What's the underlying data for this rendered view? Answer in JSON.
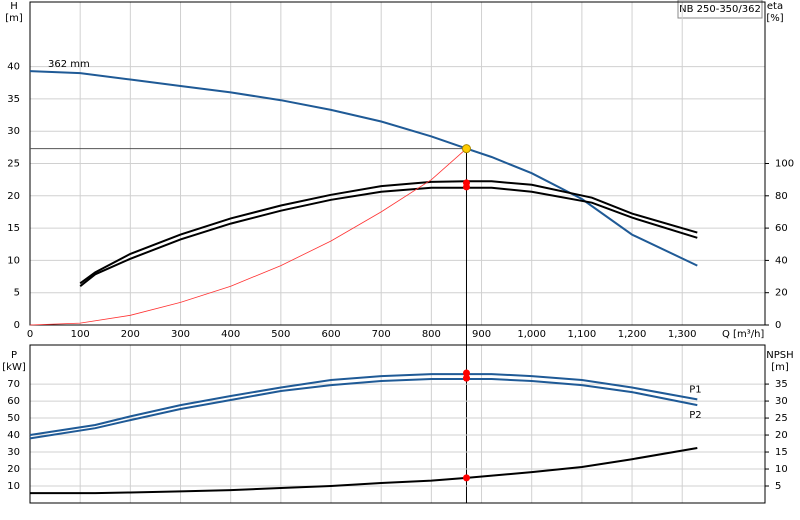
{
  "chart_data": [
    {
      "type": "line",
      "title": "NB 250-350/362",
      "x_label": "Q [m³/h]",
      "y_label": "H",
      "y_unit": "[m]",
      "y2_label": "eta",
      "y2_unit": "[%]",
      "xlim": [
        0,
        1465
      ],
      "xticks": [
        0,
        100,
        200,
        300,
        400,
        500,
        600,
        700,
        800,
        900,
        {
          "value": 1000,
          "label": "1,000"
        },
        {
          "value": 1100,
          "label": "1,100"
        },
        {
          "value": 1200,
          "label": "1,200"
        },
        {
          "value": 1300,
          "label": "1,300"
        }
      ],
      "ylim": [
        0,
        50
      ],
      "yticks": [
        0,
        5,
        10,
        15,
        20,
        25,
        30,
        35,
        40
      ],
      "y2lim": [
        0,
        200
      ],
      "y2ticks": [
        0,
        20,
        40,
        60,
        80,
        100
      ],
      "grid": true,
      "series": [
        {
          "name": "362 mm",
          "color": "#1f5a96",
          "x": [
            0,
            100,
            200,
            300,
            400,
            500,
            600,
            700,
            800,
            870,
            920,
            1000,
            1100,
            1200,
            1330
          ],
          "values": [
            39.3,
            39,
            38,
            37,
            36,
            34.8,
            33.3,
            31.5,
            29.2,
            27.3,
            26,
            23.5,
            19.5,
            14,
            9.2
          ]
        },
        {
          "color": "#000000",
          "axis": "y2",
          "x": [
            100,
            130,
            200,
            300,
            400,
            500,
            600,
            700,
            800,
            870,
            920,
            1000,
            1120,
            1200,
            1330
          ],
          "values": [
            25.8,
            32.6,
            44,
            56,
            66,
            74,
            80.6,
            86,
            88.6,
            89,
            89,
            86.8,
            78.8,
            69,
            57.2
          ]
        },
        {
          "color": "#000000",
          "axis": "y2",
          "x": [
            100,
            130,
            200,
            300,
            400,
            500,
            600,
            700,
            800,
            870,
            920,
            1000,
            1120,
            1200,
            1330
          ],
          "values": [
            24,
            31.4,
            41,
            53,
            62.8,
            70.8,
            77.5,
            82.5,
            85,
            85,
            85,
            82.5,
            75.7,
            66.5,
            54
          ]
        },
        {
          "color": "#ff3333",
          "x": [
            0,
            100,
            200,
            300,
            400,
            500,
            600,
            700,
            800,
            870
          ],
          "values": [
            0,
            0.3,
            1.5,
            3.5,
            6,
            9.2,
            13,
            17.5,
            22.5,
            27.3
          ]
        }
      ],
      "operating_point": {
        "x": 870,
        "y": 27.3,
        "y2": [
          88,
          85.5
        ]
      }
    },
    {
      "type": "line",
      "y_label": "P",
      "y_unit": "[kW]",
      "y2_label": "NPSH",
      "y2_unit": "[m]",
      "xlim": [
        0,
        1465
      ],
      "xticks": [
        0,
        100,
        200,
        300,
        400,
        500,
        600,
        700,
        800,
        900,
        1000,
        1100,
        1200,
        1300
      ],
      "ylim": [
        0,
        93
      ],
      "yticks": [
        10,
        20,
        30,
        40,
        50,
        60,
        70
      ],
      "y2lim": [
        0,
        46.5
      ],
      "y2ticks": [
        5,
        10,
        15,
        20,
        25,
        30,
        35
      ],
      "grid": true,
      "series": [
        {
          "name": "P1",
          "color": "#1f5a96",
          "x": [
            0,
            130,
            200,
            300,
            400,
            500,
            600,
            700,
            800,
            870,
            920,
            1000,
            1100,
            1200,
            1330
          ],
          "values": [
            40,
            45.9,
            51,
            57.6,
            63,
            68,
            72.4,
            74.7,
            75.9,
            75.9,
            75.9,
            74.7,
            72.4,
            68,
            61
          ]
        },
        {
          "name": "P2",
          "color": "#1f5a96",
          "x": [
            0,
            130,
            200,
            300,
            400,
            500,
            600,
            700,
            800,
            870,
            920,
            1000,
            1100,
            1200,
            1330
          ],
          "values": [
            38,
            44,
            48.8,
            55.3,
            60.6,
            65.9,
            69.4,
            71.8,
            73,
            73,
            73,
            71.8,
            69.4,
            65.3,
            57.6
          ]
        },
        {
          "color": "#000000",
          "axis": "y2",
          "x": [
            0,
            130,
            200,
            300,
            400,
            500,
            600,
            700,
            800,
            870,
            1000,
            1100,
            1200,
            1330
          ],
          "values": [
            2.9,
            2.9,
            3.1,
            3.4,
            3.8,
            4.4,
            5,
            5.9,
            6.6,
            7.4,
            9.1,
            10.6,
            12.9,
            16.2
          ]
        }
      ],
      "operating_point": {
        "x": 870,
        "y": [
          76.5,
          73.5
        ],
        "y2": 7.4
      }
    }
  ]
}
